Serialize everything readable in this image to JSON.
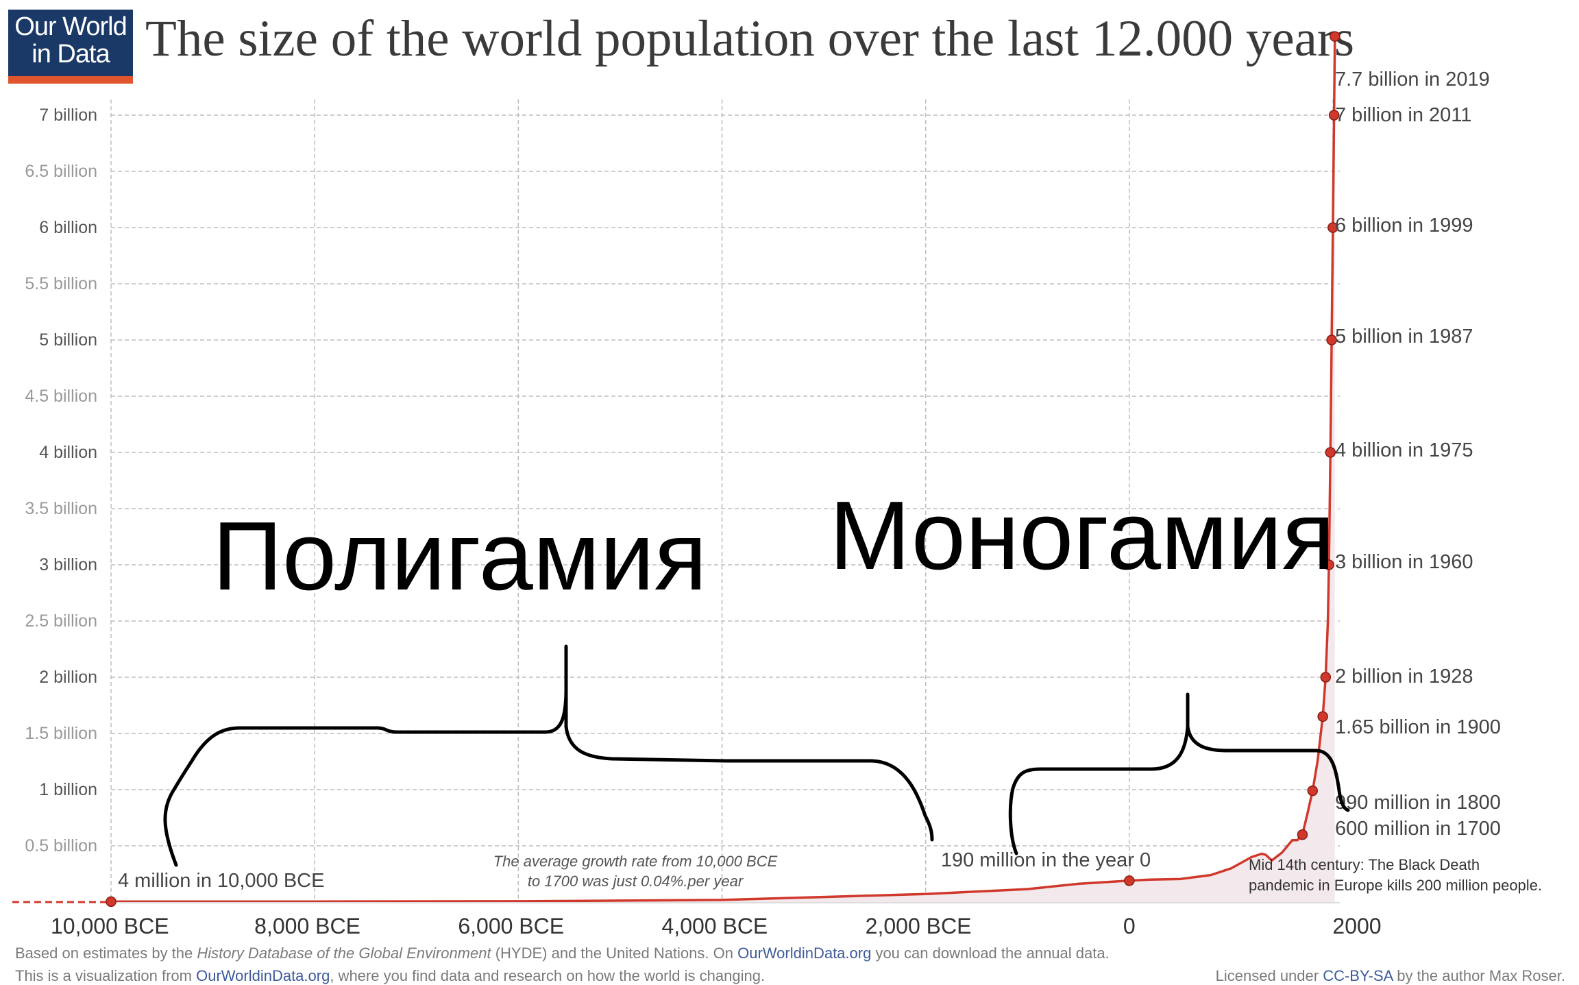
{
  "logo": {
    "line1": "Our World",
    "line2": "in Data"
  },
  "title": "The size of the world population over the last 12.000 years",
  "footer": {
    "line1_a": "Based on estimates by the ",
    "line1_b": "History Database of the Global Environment",
    "line1_c": " (HYDE) and the United Nations. On ",
    "line1_link": "OurWorldinData.org",
    "line1_d": " you can download the annual data.",
    "line2_a": "This is a visualization from ",
    "line2_link": "OurWorldinData.org",
    "line2_b": ", where you find data and research on how the world is changing.",
    "license_a": "Licensed under ",
    "license_link": "CC-BY-SA",
    "license_b": " by the author Max Roser."
  },
  "colors": {
    "line": "#d0382c",
    "area": "#f3e9ec",
    "grid": "#bdbdbd",
    "tick": "#8a8a8a",
    "label": "#555555",
    "logo_bg": "#1a3966",
    "logo_bar": "#e0552d",
    "link": "#3d5a99"
  },
  "chart_data": {
    "type": "line",
    "title": "The size of the world population over the last 12.000 years",
    "xlim": [
      -10000,
      2000
    ],
    "ylim": [
      0,
      7.7
    ],
    "x_ticks": [
      {
        "value": -10000,
        "label": "10,000 BCE"
      },
      {
        "value": -8000,
        "label": "8,000 BCE"
      },
      {
        "value": -6000,
        "label": "6,000 BCE"
      },
      {
        "value": -4000,
        "label": "4,000 BCE"
      },
      {
        "value": -2000,
        "label": "2,000 BCE"
      },
      {
        "value": 0,
        "label": "0"
      },
      {
        "value": 2000,
        "label": "2000"
      }
    ],
    "y_ticks": [
      {
        "value": 0.5,
        "label": "0.5 billion"
      },
      {
        "value": 1,
        "label": "1 billion"
      },
      {
        "value": 1.5,
        "label": "1.5 billion"
      },
      {
        "value": 2,
        "label": "2 billion"
      },
      {
        "value": 2.5,
        "label": "2.5 billion"
      },
      {
        "value": 3,
        "label": "3 billion"
      },
      {
        "value": 3.5,
        "label": "3.5  billion"
      },
      {
        "value": 4,
        "label": "4 billion"
      },
      {
        "value": 4.5,
        "label": "4.5 billion"
      },
      {
        "value": 5,
        "label": "5 billion"
      },
      {
        "value": 5.5,
        "label": "5.5 billion"
      },
      {
        "value": 6,
        "label": "6 billion"
      },
      {
        "value": 6.5,
        "label": "6.5 billion"
      },
      {
        "value": 7,
        "label": "7 billion"
      }
    ],
    "grid": true,
    "series": [
      {
        "x": [
          -10000,
          -8000,
          -6000,
          -4000,
          -3000,
          -2000,
          -1000,
          -500,
          0,
          200,
          500,
          800,
          1000,
          1100,
          1200,
          1300,
          1340,
          1400,
          1500,
          1600,
          1650,
          1700,
          1750,
          1800,
          1850,
          1900,
          1928,
          1950,
          1960,
          1975,
          1987,
          1999,
          2011,
          2019
        ],
        "y": [
          0.004,
          0.005,
          0.007,
          0.019,
          0.045,
          0.072,
          0.115,
          0.162,
          0.19,
          0.2,
          0.205,
          0.24,
          0.3,
          0.35,
          0.4,
          0.43,
          0.42,
          0.37,
          0.44,
          0.55,
          0.55,
          0.6,
          0.79,
          0.99,
          1.26,
          1.65,
          2.0,
          2.5,
          3.0,
          4.0,
          5.0,
          6.0,
          7.0,
          7.7
        ]
      }
    ],
    "markers": [
      {
        "x": -10000,
        "y": 0.004,
        "label": "4 million in 10,000 BCE"
      },
      {
        "x": 0,
        "y": 0.19,
        "label": "190 million in the year 0"
      },
      {
        "x": 1700,
        "y": 0.6,
        "label": "600 million in 1700"
      },
      {
        "x": 1800,
        "y": 0.99,
        "label": "990 million in 1800"
      },
      {
        "x": 1900,
        "y": 1.65,
        "label": "1.65 billion in 1900"
      },
      {
        "x": 1928,
        "y": 2.0,
        "label": "2 billion in 1928"
      },
      {
        "x": 1960,
        "y": 3.0,
        "label": "3 billion in 1960"
      },
      {
        "x": 1975,
        "y": 4.0,
        "label": "4 billion in 1975"
      },
      {
        "x": 1987,
        "y": 5.0,
        "label": "5 billion in 1987"
      },
      {
        "x": 1999,
        "y": 6.0,
        "label": "6 billion in 1999"
      },
      {
        "x": 2011,
        "y": 7.0,
        "label": "7 billion in 2011"
      },
      {
        "x": 2019,
        "y": 7.7,
        "label": "7.7 billion in 2019"
      }
    ],
    "annotations": {
      "growth_line1": "The average growth rate from 10,000 BCE",
      "growth_line2": "to 1700 was just  0.04%.per year",
      "black_death_line1": "Mid 14th century: The Black Death",
      "black_death_line2": "pandemic in Europe kills 200 million people."
    },
    "overlay_labels": {
      "polygamy": "Полигамия",
      "monogamy": "Моногамия"
    }
  }
}
